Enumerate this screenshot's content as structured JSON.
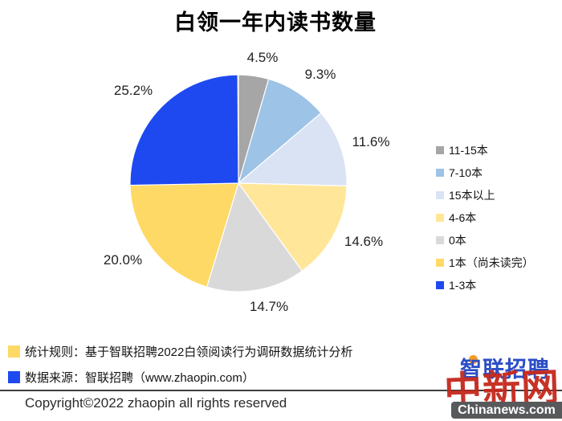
{
  "title": "白领一年内读书数量",
  "chart_data": {
    "type": "pie",
    "title": "白领一年内读书数量",
    "unit": "percent",
    "start_angle_deg": 0,
    "direction": "clockwise",
    "legend_position": "right",
    "slices": [
      {
        "label": "11-15本",
        "value": 4.5,
        "pct_label": "4.5%",
        "color": "#a6a6a6"
      },
      {
        "label": "7-10本",
        "value": 9.3,
        "pct_label": "9.3%",
        "color": "#9dc3e6"
      },
      {
        "label": "15本以上",
        "value": 11.6,
        "pct_label": "11.6%",
        "color": "#dae3f3"
      },
      {
        "label": "4-6本",
        "value": 14.6,
        "pct_label": "14.6%",
        "color": "#ffe699"
      },
      {
        "label": "0本",
        "value": 14.7,
        "pct_label": "14.7%",
        "color": "#d9d9d9"
      },
      {
        "label": "1本（尚未读完）",
        "value": 20.0,
        "pct_label": "20.0%",
        "color": "#ffd966"
      },
      {
        "label": "1-3本",
        "value": 25.2,
        "pct_label": "25.2%",
        "color": "#1e49f0"
      }
    ]
  },
  "footer": {
    "rule_label": "统计规则：基于智联招聘2022白领阅读行为调研数据统计分析",
    "rule_marker_color": "#ffd966",
    "source_label": "数据来源：智联招聘（www.zhaopin.com）",
    "source_marker_color": "#1e49f0",
    "copyright": "Copyright©2022 zhaopin all rights reserved"
  },
  "watermark": {
    "zhaopin_logo_text": "智联招聘",
    "chinanews_logo_text": "中新网",
    "chinanews_badge": "Chinanews.com"
  }
}
